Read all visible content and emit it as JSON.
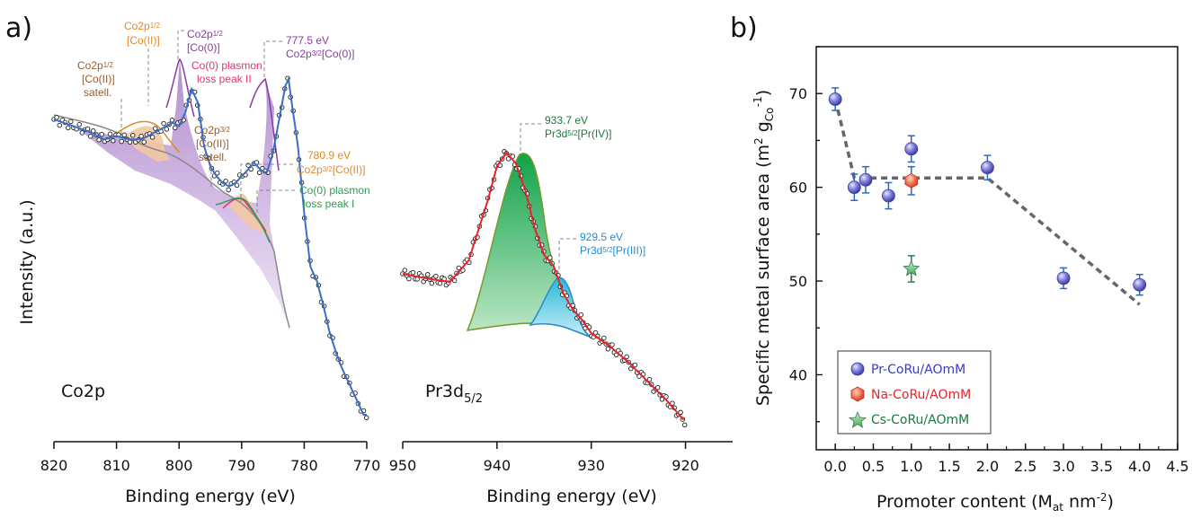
{
  "colors": {
    "envelope": "#e8232b",
    "co_fit": "#3a6fc4",
    "co_metal_fill": "#a77bc8",
    "co2_fill": "#f0a15a",
    "plasmon_fill": "#f3c8a3",
    "pr4_fill": "#1daa55",
    "pr3_fill": "#49c6e0",
    "series_pr": "#5a5ac8",
    "series_na": "#f04b3a",
    "series_cs": "#2e9e5a",
    "trend": "#666666",
    "ann_orange": "#e08a28",
    "ann_purple": "#8a3aa8",
    "ann_pink": "#e2337a",
    "ann_brown": "#9a5a2a",
    "ann_green": "#2aa04a",
    "ann_blue": "#2a8ad0",
    "ann_darkgreen": "#1a7a3a"
  },
  "panel_labels": {
    "a": "a)",
    "b": "b)"
  },
  "co2p": {
    "label": "Co2p",
    "ylabel": "Intensity (a.u.)",
    "xlabel": "Binding energy (eV)",
    "ticks": [
      "820",
      "810",
      "800",
      "790",
      "780",
      "770"
    ],
    "annotations": {
      "co2_p12_main": [
        "Co2p",
        "1/2",
        "[Co(II)]"
      ],
      "co0_p12": [
        "Co2p",
        "1/2",
        "[Co(0)]"
      ],
      "co0_p32_energy": "777.5 eV",
      "co0_p32_name": [
        "Co2p",
        "3/2",
        "[Co(0)]"
      ],
      "co2_p12_satell": [
        "Co2p",
        "1/2",
        "[Co(II)]",
        "satell."
      ],
      "plasmon2": [
        "Co(0) plasmon",
        "loss peak II"
      ],
      "co2_p32_satell": [
        "Co2p",
        "3/2",
        "[Co(II)]",
        "satell."
      ],
      "co2_p32_energy": "780.9 eV",
      "co2_p32_name": [
        "Co2p",
        "3/2",
        "[Co(II)]"
      ],
      "plasmon1": [
        "Co(0) plasmon",
        "loss peak I"
      ]
    }
  },
  "pr3d": {
    "label_main": "Pr3d",
    "label_sub": "5/2",
    "xlabel": "Binding energy (eV)",
    "ticks": [
      "950",
      "940",
      "930",
      "920"
    ],
    "annotations": {
      "pr4_energy": "933.7 eV",
      "pr4_name": [
        "Pr3d",
        "5/2",
        "[Pr(IV)]"
      ],
      "pr3_energy": "929.5 eV",
      "pr3_name": [
        "Pr3d",
        "5/2",
        "[Pr(III)]"
      ]
    }
  },
  "chart_data": [
    {
      "type": "line",
      "panel": "a-Co2p",
      "xlabel": "Binding energy (eV)",
      "ylabel": "Intensity (a.u.)",
      "xlim": [
        820,
        770
      ],
      "x_ticks": [
        820,
        810,
        800,
        790,
        780,
        770
      ],
      "series": [
        {
          "name": "Measured",
          "x": [
            820,
            817,
            814,
            812,
            810,
            808,
            806,
            804,
            802,
            801,
            800,
            799,
            798,
            797,
            796,
            795,
            794,
            793,
            792,
            791,
            790,
            789,
            788,
            787,
            786,
            785,
            784,
            783,
            782.5,
            782,
            781,
            780,
            779,
            778,
            777,
            776,
            775,
            774,
            773,
            772,
            771,
            770.5,
            770
          ],
          "y": [
            0.88,
            0.86,
            0.84,
            0.82,
            0.83,
            0.82,
            0.82,
            0.84,
            0.86,
            0.87,
            0.86,
            0.9,
            0.97,
            0.93,
            0.8,
            0.74,
            0.71,
            0.69,
            0.68,
            0.69,
            0.71,
            0.73,
            0.75,
            0.73,
            0.72,
            0.78,
            0.88,
            0.98,
            1.0,
            0.93,
            0.8,
            0.6,
            0.44,
            0.4,
            0.33,
            0.25,
            0.19,
            0.14,
            0.1,
            0.06,
            0.02,
            0.0,
            0.0
          ]
        }
      ],
      "annotations": [
        "Co2p1/2 [Co(II)]",
        "Co2p1/2 [Co(0)]",
        "777.5 eV Co2p3/2 [Co(0)]",
        "Co2p1/2 [Co(II)] satell.",
        "Co(0) plasmon loss peak II",
        "Co2p3/2 [Co(II)] satell.",
        "780.9 eV Co2p3/2 [Co(II)]",
        "Co(0) plasmon loss peak I"
      ]
    },
    {
      "type": "line",
      "panel": "a-Pr3d5/2",
      "xlabel": "Binding energy (eV)",
      "xlim": [
        950,
        920
      ],
      "x_ticks": [
        950,
        940,
        930,
        920
      ],
      "series": [
        {
          "name": "Measured",
          "x": [
            950,
            947,
            945,
            943,
            941,
            940,
            939,
            938,
            937,
            936,
            935,
            934,
            933,
            932,
            931,
            930,
            928,
            926,
            924,
            922,
            920
          ],
          "y": [
            0.55,
            0.53,
            0.52,
            0.6,
            0.82,
            0.95,
            1.0,
            0.96,
            0.86,
            0.72,
            0.62,
            0.58,
            0.48,
            0.42,
            0.38,
            0.33,
            0.28,
            0.22,
            0.15,
            0.08,
            0.0
          ]
        }
      ],
      "annotations": [
        "933.7 eV Pr3d5/2 [Pr(IV)]",
        "929.5 eV Pr3d5/2 [Pr(III)]"
      ]
    },
    {
      "type": "scatter",
      "panel": "b",
      "xlabel": "Promoter content (M_at nm^-2)",
      "ylabel": "Specific metal surface area (m^2 g_Co^-1)",
      "xlim": [
        -0.25,
        4.5
      ],
      "ylim": [
        32,
        75
      ],
      "x_ticks": [
        0.0,
        0.5,
        1.0,
        1.5,
        2.0,
        2.5,
        3.0,
        3.5,
        4.0,
        4.5
      ],
      "y_ticks": [
        40,
        50,
        60,
        70
      ],
      "legend_position": "bottom-left",
      "series": [
        {
          "name": "Pr-CoRu/AOmM",
          "marker": "sphere",
          "x": [
            0.0,
            0.25,
            0.4,
            0.7,
            1.0,
            2.0,
            3.0,
            4.0
          ],
          "y": [
            69.4,
            60.0,
            60.8,
            59.1,
            64.1,
            62.1,
            50.3,
            49.6
          ],
          "err": [
            1.2,
            1.4,
            1.4,
            1.4,
            1.4,
            1.3,
            1.1,
            1.1
          ]
        },
        {
          "name": "Na-CoRu/AOmM",
          "marker": "hexagon",
          "x": [
            1.0
          ],
          "y": [
            60.7
          ],
          "err": [
            1.5
          ]
        },
        {
          "name": "Cs-CoRu/AOmM",
          "marker": "star",
          "x": [
            1.0
          ],
          "y": [
            51.3
          ],
          "err": [
            1.4
          ]
        }
      ],
      "trend_line": {
        "x": [
          0.0,
          0.25,
          2.0,
          4.0
        ],
        "y": [
          69.4,
          61.0,
          61.0,
          47.5
        ]
      }
    }
  ],
  "panel_b": {
    "xlabel_main": "Promoter content (M",
    "xlabel_sub": "at",
    "xlabel_rest": " nm",
    "xlabel_sup": "-2",
    "xlabel_end": ")",
    "ylabel_main": "Specific metal surface area (m",
    "ylabel_sup1": "2",
    "ylabel_mid": " g",
    "ylabel_sub": "Co",
    "ylabel_sup2": "-1",
    "ylabel_end": ")",
    "x_tick_labels": [
      "0.0",
      "0.5",
      "1.0",
      "1.5",
      "2.0",
      "2.5",
      "3.0",
      "3.5",
      "4.0",
      "4.5"
    ],
    "y_tick_labels": [
      "40",
      "50",
      "60",
      "70"
    ],
    "legend": [
      "Pr-CoRu/AOmM",
      "Na-CoRu/AOmM",
      "Cs-CoRu/AOmM"
    ]
  }
}
